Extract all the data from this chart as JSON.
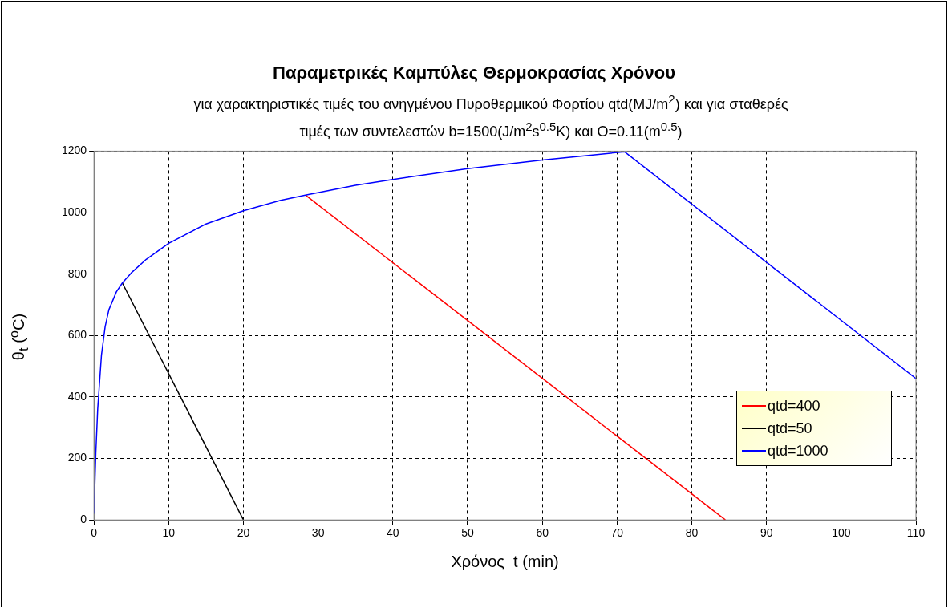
{
  "chart_data": {
    "type": "line",
    "title": "Παραμετρικές Καμπύλες Θερμοκρασίας Χρόνου",
    "subtitle": "για χαρακτηριστικές τιμές του ανηγμένου Πυροθερμικού Φορτίου qtd(MJ/m$^{2}$) και για σταθερές τιμές των συντελεστών b=1500(J/m$^{2}$s$^{0.5}$K) και O=0.11(m$^{0.5}$)",
    "xlabel": "Χρόνος  t (min)",
    "ylabel": "θ$_{t}$ ($^{o}$C)",
    "xlim": [
      0,
      110
    ],
    "xticks": [
      0,
      10,
      20,
      30,
      40,
      50,
      60,
      70,
      80,
      90,
      100,
      110
    ],
    "ylim": [
      0,
      1200
    ],
    "yticks": [
      0,
      200,
      400,
      600,
      800,
      1000,
      1200
    ],
    "grid": true,
    "legend": "right",
    "marker": "none",
    "line_style": "solid",
    "series": [
      {
        "name": "qtd=400",
        "color": "#ff0000",
        "x": [
          28.3,
          84.5
        ],
        "values": [
          1057,
          0
        ]
      },
      {
        "name": "qtd=50",
        "color": "#000000",
        "x": [
          3.8,
          20
        ],
        "values": [
          771,
          0
        ]
      },
      {
        "name": "qtd=1000",
        "color": "#0000ff",
        "x": [
          0,
          0.25,
          0.5,
          1,
          1.5,
          2,
          3,
          3.8,
          5,
          7,
          10,
          15,
          20,
          25,
          28.3,
          35,
          40,
          50,
          60,
          71,
          110
        ],
        "values": [
          20,
          218,
          360,
          535,
          629,
          684,
          742,
          771,
          804,
          848,
          900,
          963,
          1006,
          1040,
          1057,
          1089,
          1108,
          1143,
          1171,
          1198,
          460
        ]
      }
    ]
  }
}
